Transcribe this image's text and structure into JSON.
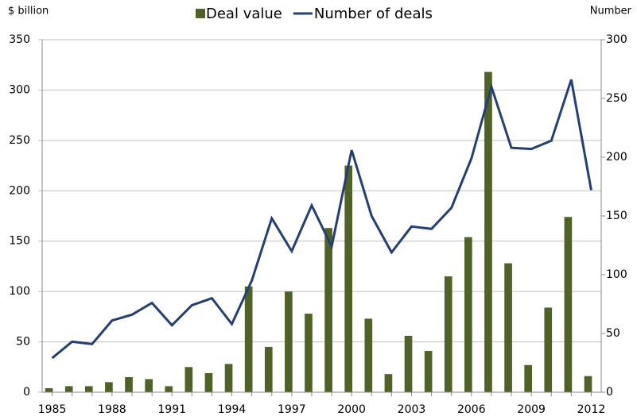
{
  "chart_data": {
    "type": "bar_line",
    "y_label": "$ billion",
    "y2_label": "Number",
    "categories": [
      1985,
      null,
      null,
      1988,
      null,
      null,
      1991,
      null,
      null,
      1994,
      null,
      null,
      1997,
      null,
      null,
      2000,
      null,
      null,
      2003,
      null,
      null,
      2006,
      null,
      null,
      2009,
      null,
      null,
      2012
    ],
    "series": [
      {
        "name": "Deal value",
        "type": "bar",
        "color": "#4f6228",
        "values": [
          4,
          6,
          6,
          10,
          15,
          13,
          6,
          25,
          19,
          28,
          105,
          45,
          100,
          78,
          163,
          225,
          73,
          18,
          56,
          41,
          115,
          154,
          318,
          128,
          27,
          84,
          174,
          16
        ]
      },
      {
        "name": "Number of deals",
        "type": "line",
        "axis": "y2",
        "color": "#243f73",
        "values": [
          29,
          43,
          41,
          61,
          66,
          76,
          57,
          74,
          80,
          58,
          95,
          148,
          120,
          159,
          124,
          206,
          150,
          119,
          141,
          139,
          157,
          199,
          260,
          208,
          207,
          214,
          266,
          172
        ]
      }
    ],
    "ylim": [
      0,
      350
    ],
    "yticks": [
      0,
      50,
      100,
      150,
      200,
      250,
      300,
      350
    ],
    "y2lim": [
      0,
      300
    ],
    "y2ticks": [
      0,
      50,
      100,
      150,
      200,
      250,
      300
    ],
    "grid": true
  }
}
